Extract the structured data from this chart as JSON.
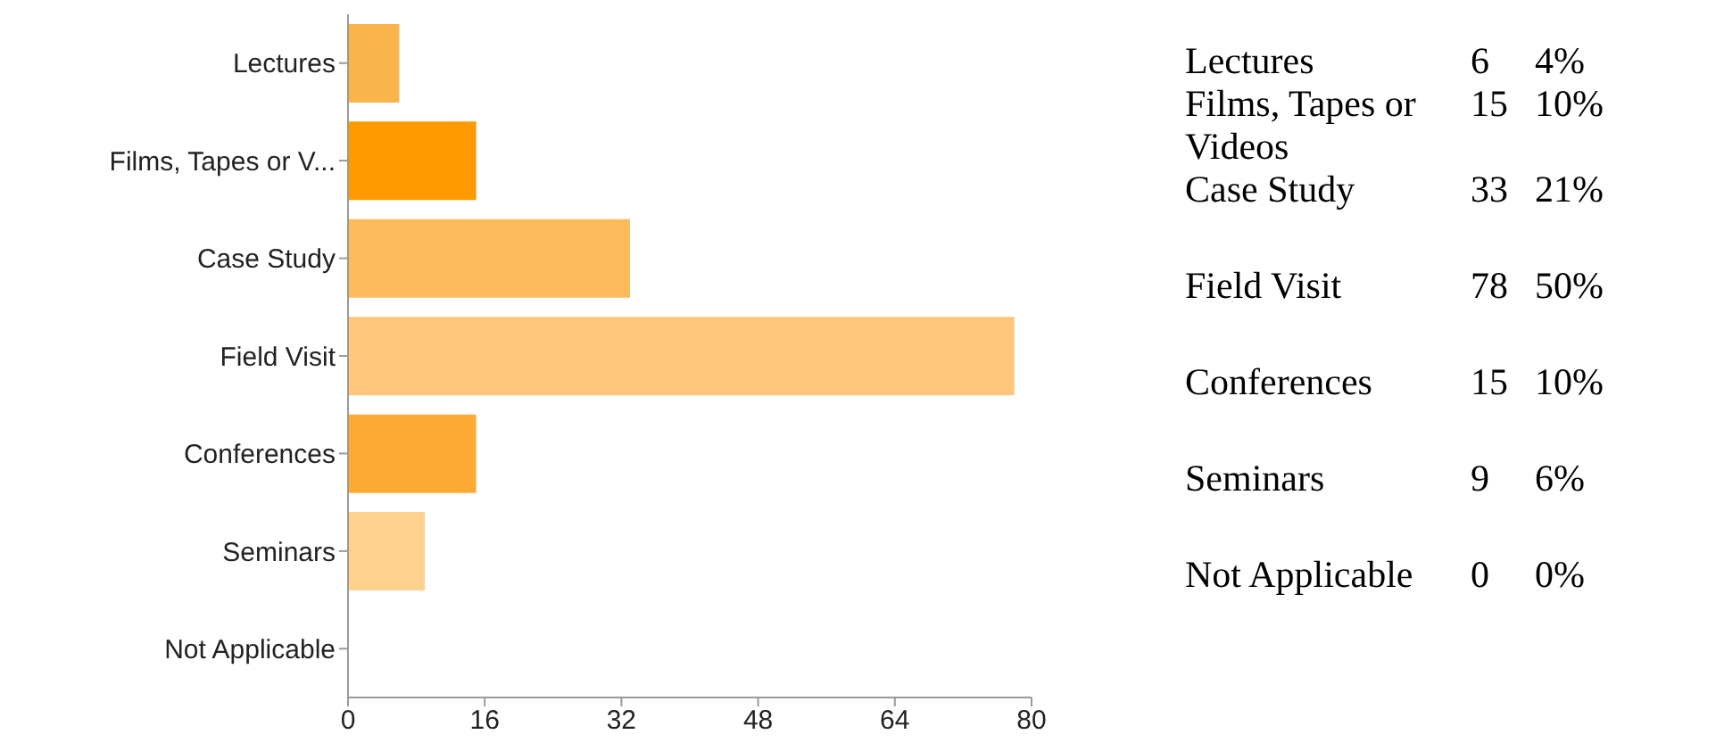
{
  "chart_data": [
    {
      "type": "bar",
      "orientation": "horizontal",
      "categories": [
        "Lectures",
        "Films, Tapes or V...",
        "Case Study",
        "Field Visit",
        "Conferences",
        "Seminars",
        "Not Applicable"
      ],
      "values": [
        6,
        15,
        33,
        78,
        15,
        9,
        0
      ],
      "colors": [
        "#fbb44c",
        "#ff9900",
        "#fdbb5e",
        "#fec77c",
        "#fcaa33",
        "#fed18f",
        "#fdb863"
      ],
      "xlim": [
        0,
        80
      ],
      "xticks": [
        0,
        16,
        32,
        48,
        64,
        80
      ],
      "grid": false,
      "legend": false
    },
    {
      "type": "other",
      "annotations": [
        "Lectures",
        "6",
        "4%",
        "Films, Tapes or Videos",
        "15",
        "10%",
        "Case Study",
        "33",
        "21%",
        "Field Visit",
        "78",
        "50%",
        "Conferences",
        "15",
        "10%",
        "Seminars",
        "9",
        "6%",
        "Not Applicable",
        "0",
        "0%"
      ]
    }
  ]
}
